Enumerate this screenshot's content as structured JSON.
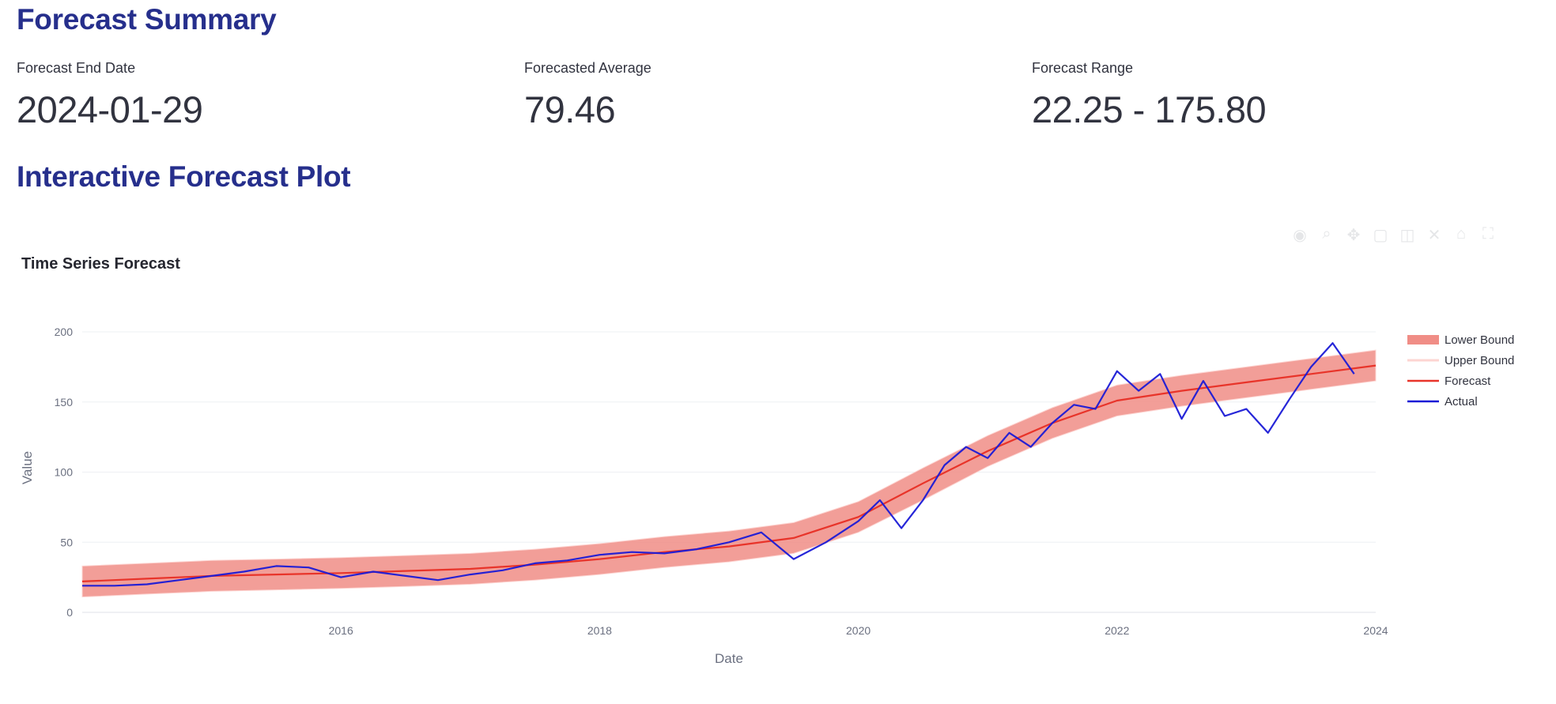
{
  "summary": {
    "title": "Forecast Summary",
    "metrics": [
      {
        "label": "Forecast End Date",
        "value": "2024-01-29"
      },
      {
        "label": "Forecasted Average",
        "value": "79.46"
      },
      {
        "label": "Forecast Range",
        "value": "22.25 - 175.80"
      }
    ]
  },
  "plot_section": {
    "title": "Interactive Forecast Plot"
  },
  "modebar": {
    "icons": [
      "camera-icon",
      "zoom-icon",
      "pan-icon",
      "box-select-icon",
      "lasso-icon",
      "zoom-in-icon",
      "zoom-out-icon",
      "autoscale-icon"
    ]
  },
  "chart_data": {
    "type": "line",
    "title": "Time Series Forecast",
    "xlabel": "Date",
    "ylabel": "Value",
    "xlim": [
      "2014-01-01",
      "2024-01-01"
    ],
    "ylim": [
      0,
      200
    ],
    "x_ticks": [
      "2016",
      "2018",
      "2020",
      "2022",
      "2024"
    ],
    "y_ticks": [
      0,
      50,
      100,
      150,
      200
    ],
    "grid": true,
    "legend_position": "right",
    "series": [
      {
        "name": "Lower Bound",
        "color": "#f08d86",
        "style": "band-lower"
      },
      {
        "name": "Upper Bound",
        "color": "#fdd5d2",
        "style": "band-upper"
      },
      {
        "name": "Forecast",
        "color": "#e8342a",
        "x": [
          "2014-01",
          "2014-07",
          "2015-01",
          "2015-07",
          "2016-01",
          "2016-07",
          "2017-01",
          "2017-07",
          "2018-01",
          "2018-07",
          "2019-01",
          "2019-07",
          "2020-01",
          "2020-07",
          "2021-01",
          "2021-07",
          "2022-01",
          "2022-07",
          "2023-01",
          "2023-07",
          "2024-01"
        ],
        "y": [
          22,
          24,
          26,
          27,
          28,
          29.5,
          31,
          34,
          38,
          43,
          47,
          53,
          68,
          92,
          115,
          135,
          151,
          158,
          164,
          170,
          176
        ]
      },
      {
        "name": "Actual",
        "color": "#1a1ad6",
        "x": [
          "2014-01",
          "2014-04",
          "2014-07",
          "2014-10",
          "2015-01",
          "2015-04",
          "2015-07",
          "2015-10",
          "2016-01",
          "2016-04",
          "2016-07",
          "2016-10",
          "2017-01",
          "2017-04",
          "2017-07",
          "2017-10",
          "2018-01",
          "2018-04",
          "2018-07",
          "2018-10",
          "2019-01",
          "2019-04",
          "2019-07",
          "2019-10",
          "2020-01",
          "2020-03",
          "2020-05",
          "2020-07",
          "2020-09",
          "2020-11",
          "2021-01",
          "2021-03",
          "2021-05",
          "2021-07",
          "2021-09",
          "2021-11",
          "2022-01",
          "2022-03",
          "2022-05",
          "2022-07",
          "2022-09",
          "2022-11",
          "2023-01",
          "2023-03",
          "2023-05",
          "2023-07",
          "2023-09",
          "2023-11"
        ],
        "y": [
          19,
          19,
          20,
          23,
          26,
          29,
          33,
          32,
          25,
          29,
          26,
          23,
          27,
          30,
          35,
          37,
          41,
          43,
          42,
          45,
          50,
          57,
          38,
          50,
          65,
          80,
          60,
          80,
          105,
          118,
          110,
          128,
          118,
          135,
          148,
          145,
          172,
          158,
          170,
          138,
          165,
          140,
          145,
          128,
          152,
          175,
          192,
          170
        ]
      }
    ],
    "band": {
      "x": [
        "2014-01",
        "2014-07",
        "2015-01",
        "2015-07",
        "2016-01",
        "2016-07",
        "2017-01",
        "2017-07",
        "2018-01",
        "2018-07",
        "2019-01",
        "2019-07",
        "2020-01",
        "2020-07",
        "2021-01",
        "2021-07",
        "2022-01",
        "2022-07",
        "2023-01",
        "2023-07",
        "2024-01"
      ],
      "lower": [
        11,
        13,
        15,
        16,
        17,
        18.5,
        20,
        23,
        27,
        32,
        36,
        42,
        57,
        80,
        104,
        124,
        140,
        147,
        153,
        159,
        165
      ],
      "upper": [
        33,
        35,
        37,
        38,
        39,
        40.5,
        42,
        45,
        49,
        54,
        58,
        64,
        79,
        103,
        126,
        146,
        162,
        169,
        175,
        181,
        187
      ]
    }
  }
}
